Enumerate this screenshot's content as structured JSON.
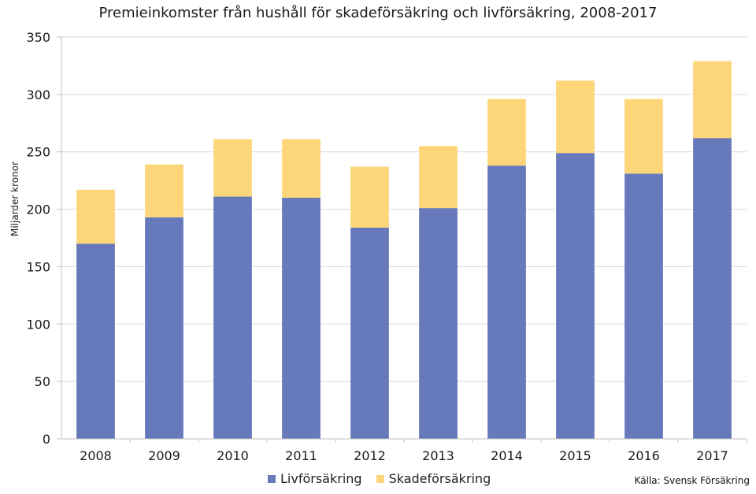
{
  "chart_data": {
    "type": "bar",
    "stacked": true,
    "title": "Premieinkomster från hushåll för skadeförsäkring och livförsäkring, 2008-2017",
    "ylabel": "Miljarder kronor",
    "xlabel": "",
    "categories": [
      "2008",
      "2009",
      "2010",
      "2011",
      "2012",
      "2013",
      "2014",
      "2015",
      "2016",
      "2017"
    ],
    "series": [
      {
        "name": "Livförsäkring",
        "color": "#6679bb",
        "values": [
          170,
          193,
          211,
          210,
          184,
          201,
          238,
          249,
          231,
          262
        ]
      },
      {
        "name": "Skadeförsäkring",
        "color": "#fed67a",
        "values": [
          47,
          46,
          50,
          51,
          53,
          54,
          58,
          63,
          65,
          67
        ]
      }
    ],
    "ylim": [
      0,
      350
    ],
    "yticks": [
      0,
      50,
      100,
      150,
      200,
      250,
      300,
      350
    ],
    "grid": true,
    "legend_position": "bottom",
    "source": "Källa: Svensk Försäkring"
  }
}
